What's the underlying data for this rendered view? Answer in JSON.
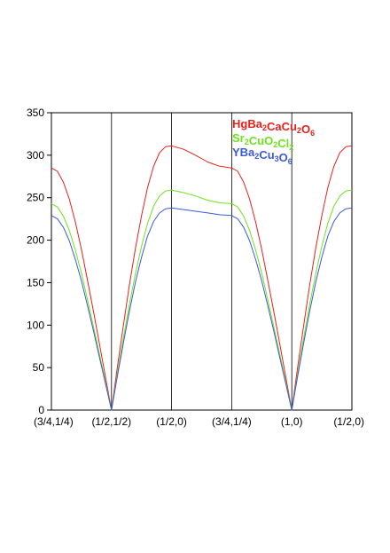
{
  "chart_data": {
    "type": "line",
    "title": "",
    "xlabel": "",
    "ylabel": "",
    "ylim": [
      0,
      350
    ],
    "yticks": [
      0,
      50,
      100,
      150,
      200,
      250,
      300,
      350
    ],
    "grid": "vertical lines at symmetry points",
    "legend_position": "top-right",
    "x_labels": [
      "(3/4,1/4)",
      "(1/2,1/2)",
      "(1/2,0)",
      "(3/4,1/4)",
      "(1,0)",
      "(1/2,0)"
    ],
    "x_positions": [
      0,
      1,
      2,
      3,
      4,
      5
    ],
    "series": [
      {
        "name": "HgBa2CaCu2O6",
        "color": "#e8201c",
        "x": [
          0,
          0.1,
          0.2,
          0.3,
          0.4,
          0.5,
          0.6,
          0.7,
          0.8,
          0.9,
          1,
          1.1,
          1.2,
          1.3,
          1.4,
          1.5,
          1.6,
          1.7,
          1.8,
          1.9,
          2,
          2.2,
          2.4,
          2.6,
          2.8,
          3,
          3.1,
          3.2,
          3.3,
          3.4,
          3.5,
          3.6,
          3.7,
          3.8,
          3.9,
          4,
          4.1,
          4.2,
          4.3,
          4.4,
          4.5,
          4.6,
          4.7,
          4.8,
          4.9,
          5
        ],
        "y": [
          285,
          281,
          268,
          248,
          221,
          189,
          153,
          116,
          78,
          39,
          0,
          52,
          101,
          148,
          191,
          229,
          262,
          287,
          303,
          310,
          311,
          307,
          300,
          292,
          287,
          285,
          281,
          268,
          248,
          221,
          189,
          153,
          116,
          78,
          39,
          0,
          52,
          101,
          148,
          191,
          229,
          262,
          287,
          303,
          310,
          311
        ]
      },
      {
        "name": "Sr2CuO2Cl2",
        "color": "#6fe21f",
        "x": [
          0,
          0.1,
          0.2,
          0.3,
          0.4,
          0.5,
          0.6,
          0.7,
          0.8,
          0.9,
          1,
          1.1,
          1.2,
          1.3,
          1.4,
          1.5,
          1.6,
          1.7,
          1.8,
          1.9,
          2,
          2.2,
          2.4,
          2.6,
          2.8,
          3,
          3.1,
          3.2,
          3.3,
          3.4,
          3.5,
          3.6,
          3.7,
          3.8,
          3.9,
          4,
          4.1,
          4.2,
          4.3,
          4.4,
          4.5,
          4.6,
          4.7,
          4.8,
          4.9,
          5
        ],
        "y": [
          243,
          239,
          228,
          211,
          188,
          161,
          130,
          98,
          66,
          33,
          0,
          44,
          86,
          125,
          161,
          193,
          220,
          240,
          252,
          258,
          259,
          256,
          252,
          247,
          244,
          243,
          239,
          228,
          211,
          188,
          161,
          130,
          98,
          66,
          33,
          0,
          44,
          86,
          125,
          161,
          193,
          220,
          240,
          252,
          258,
          259
        ]
      },
      {
        "name": "YBa2Cu3O6",
        "color": "#3a5bdc",
        "x": [
          0,
          0.1,
          0.2,
          0.3,
          0.4,
          0.5,
          0.6,
          0.7,
          0.8,
          0.9,
          1,
          1.1,
          1.2,
          1.3,
          1.4,
          1.5,
          1.6,
          1.7,
          1.8,
          1.9,
          2,
          2.2,
          2.4,
          2.6,
          2.8,
          3,
          3.1,
          3.2,
          3.3,
          3.4,
          3.5,
          3.6,
          3.7,
          3.8,
          3.9,
          4,
          4.1,
          4.2,
          4.3,
          4.4,
          4.5,
          4.6,
          4.7,
          4.8,
          4.9,
          5
        ],
        "y": [
          229,
          225,
          215,
          199,
          177,
          152,
          123,
          93,
          62,
          31,
          0,
          41,
          80,
          117,
          151,
          180,
          205,
          222,
          232,
          237,
          238,
          236,
          234,
          232,
          230,
          229,
          225,
          215,
          199,
          177,
          152,
          123,
          93,
          62,
          31,
          0,
          41,
          80,
          117,
          151,
          180,
          205,
          222,
          232,
          237,
          238
        ]
      }
    ]
  }
}
